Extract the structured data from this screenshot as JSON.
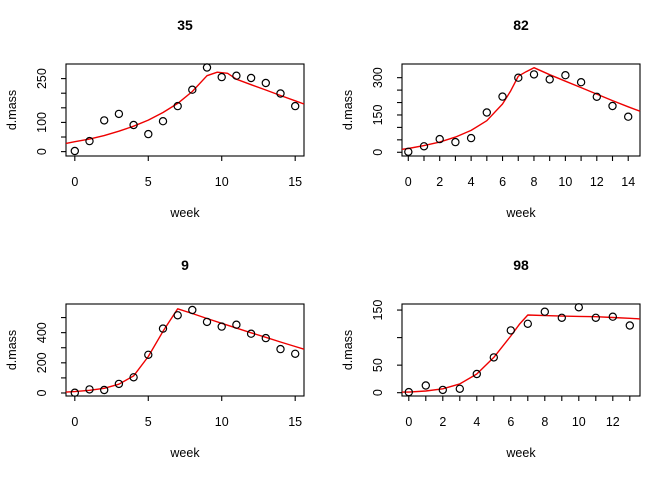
{
  "figure": {
    "background": "#ffffff",
    "line_color": "#ee0000",
    "point_color": "#000000",
    "axis_color": "#000000"
  },
  "chart_data": [
    {
      "type": "scatter",
      "title": "35",
      "xlabel": "week",
      "ylabel": "d.mass",
      "xlim": [
        -0.6,
        15.6
      ],
      "ylim": [
        -15,
        300
      ],
      "grid": "off",
      "x_ticks": {
        "values": [
          0,
          5,
          10,
          15
        ],
        "labeled": [
          0,
          5,
          10,
          15
        ]
      },
      "y_ticks": {
        "values": [
          0,
          50,
          100,
          150,
          200,
          250
        ],
        "labeled": [
          0,
          100,
          250
        ]
      },
      "points": {
        "x": [
          0,
          1,
          2,
          3,
          4,
          5,
          6,
          7,
          8,
          9,
          10,
          11,
          12,
          13,
          14,
          15
        ],
        "y": [
          2,
          36,
          107,
          129,
          91,
          60,
          104,
          156,
          212,
          288,
          255,
          260,
          252,
          235,
          199,
          156
        ]
      },
      "fit_line": {
        "x": [
          -0.6,
          0,
          1,
          2,
          3,
          4,
          5,
          6,
          7,
          8,
          9,
          9.7,
          10.4,
          11,
          12,
          13,
          14,
          15,
          15.6
        ],
        "y": [
          28,
          34,
          43,
          55,
          70,
          87,
          108,
          134,
          165,
          206,
          260,
          272,
          268,
          248,
          229,
          211,
          192,
          174,
          163
        ]
      }
    },
    {
      "type": "scatter",
      "title": "82",
      "xlabel": "week",
      "ylabel": "d.mass",
      "xlim": [
        -0.4,
        14.75
      ],
      "ylim": [
        -15,
        355
      ],
      "grid": "off",
      "x_ticks": {
        "values": [
          0,
          1,
          2,
          3,
          4,
          5,
          6,
          7,
          8,
          9,
          10,
          11,
          12,
          13,
          14
        ],
        "labeled": [
          0,
          2,
          4,
          6,
          8,
          10,
          12,
          14
        ]
      },
      "y_ticks": {
        "values": [
          0,
          50,
          100,
          150,
          200,
          250,
          300
        ],
        "labeled": [
          0,
          150,
          300
        ]
      },
      "points": {
        "x": [
          0,
          1,
          2,
          3,
          4,
          5,
          6,
          7,
          8,
          9,
          10,
          11,
          12,
          13,
          14
        ],
        "y": [
          2,
          24,
          53,
          41,
          57,
          160,
          224,
          300,
          313,
          293,
          310,
          282,
          223,
          186,
          143
        ]
      },
      "fit_line": {
        "x": [
          -0.4,
          0,
          1,
          2,
          3,
          4,
          5,
          6,
          6.5,
          7,
          7.5,
          8,
          9,
          10,
          11,
          12,
          13,
          14,
          14.75
        ],
        "y": [
          12,
          15,
          27,
          41,
          61,
          88,
          127,
          194,
          245,
          306,
          324,
          340,
          312,
          286,
          260,
          234,
          208,
          183,
          165
        ]
      }
    },
    {
      "type": "scatter",
      "title": "9",
      "xlabel": "week",
      "ylabel": "d.mass",
      "xlim": [
        -0.6,
        15.6
      ],
      "ylim": [
        -20,
        590
      ],
      "grid": "off",
      "x_ticks": {
        "values": [
          0,
          5,
          10,
          15
        ],
        "labeled": [
          0,
          5,
          10,
          15
        ]
      },
      "y_ticks": {
        "values": [
          0,
          100,
          200,
          300,
          400,
          500
        ],
        "labeled": [
          0,
          200,
          400
        ]
      },
      "points": {
        "x": [
          0,
          1,
          2,
          3,
          4,
          5,
          6,
          7,
          8,
          9,
          10,
          11,
          12,
          13,
          14,
          15
        ],
        "y": [
          2,
          24,
          20,
          60,
          104,
          253,
          427,
          515,
          550,
          471,
          440,
          453,
          393,
          364,
          291,
          260
        ]
      },
      "fit_line": {
        "x": [
          -0.6,
          0,
          1,
          2,
          3,
          4,
          5,
          6,
          7,
          8,
          9,
          10,
          11,
          12,
          13,
          14,
          15,
          15.6
        ],
        "y": [
          6,
          9,
          18,
          31,
          58,
          113,
          242,
          409,
          558,
          527,
          494,
          462,
          430,
          399,
          369,
          338,
          308,
          290
        ]
      }
    },
    {
      "type": "scatter",
      "title": "98",
      "xlabel": "week",
      "ylabel": "d.mass",
      "xlim": [
        -0.4,
        13.6
      ],
      "ylim": [
        -6,
        161
      ],
      "grid": "off",
      "x_ticks": {
        "values": [
          0,
          1,
          2,
          3,
          4,
          5,
          6,
          7,
          8,
          9,
          10,
          11,
          12,
          13
        ],
        "labeled": [
          0,
          2,
          4,
          6,
          8,
          10,
          12
        ]
      },
      "y_ticks": {
        "values": [
          0,
          50,
          100,
          150
        ],
        "labeled": [
          0,
          50,
          150
        ]
      },
      "points": {
        "x": [
          0,
          1,
          2,
          3,
          4,
          5,
          6,
          7,
          8,
          9,
          10,
          11,
          12,
          13
        ],
        "y": [
          1,
          13,
          5,
          7,
          34,
          64,
          113,
          125,
          147,
          136,
          155,
          136,
          138,
          122
        ]
      },
      "fit_line": {
        "x": [
          -0.4,
          0,
          1,
          2,
          3,
          4,
          5,
          6,
          6.5,
          7,
          8,
          9,
          10,
          11,
          12,
          13,
          13.6
        ],
        "y": [
          1,
          1,
          3,
          7,
          16,
          34,
          64,
          103,
          124,
          141,
          140,
          139,
          138.5,
          138,
          136.5,
          135,
          134
        ]
      }
    }
  ]
}
